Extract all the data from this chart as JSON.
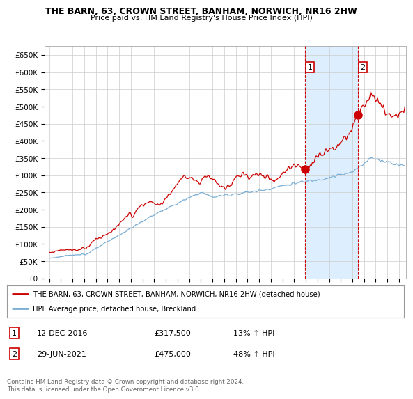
{
  "title": "THE BARN, 63, CROWN STREET, BANHAM, NORWICH, NR16 2HW",
  "subtitle": "Price paid vs. HM Land Registry's House Price Index (HPI)",
  "ylim": [
    0,
    675000
  ],
  "yticks": [
    0,
    50000,
    100000,
    150000,
    200000,
    250000,
    300000,
    350000,
    400000,
    450000,
    500000,
    550000,
    600000,
    650000
  ],
  "ytick_labels": [
    "£0",
    "£50K",
    "£100K",
    "£150K",
    "£200K",
    "£250K",
    "£300K",
    "£350K",
    "£400K",
    "£450K",
    "£500K",
    "£550K",
    "£600K",
    "£650K"
  ],
  "sale1_date": 2016.95,
  "sale1_price": 317500,
  "sale1_label": "1",
  "sale2_date": 2021.49,
  "sale2_price": 475000,
  "sale2_label": "2",
  "legend_line1": "THE BARN, 63, CROWN STREET, BANHAM, NORWICH, NR16 2HW (detached house)",
  "legend_line2": "HPI: Average price, detached house, Breckland",
  "table_row1": [
    "1",
    "12-DEC-2016",
    "£317,500",
    "13% ↑ HPI"
  ],
  "table_row2": [
    "2",
    "29-JUN-2021",
    "£475,000",
    "48% ↑ HPI"
  ],
  "footer": "Contains HM Land Registry data © Crown copyright and database right 2024.\nThis data is licensed under the Open Government Licence v3.0.",
  "line_color_red": "#cc0000",
  "line_color_blue": "#7aaed4",
  "shade_color": "#ddeeff",
  "background_color": "#ffffff",
  "grid_color": "#cccccc",
  "vline_color": "#cc0000",
  "xlim_left": 1994.6,
  "xlim_right": 2025.6
}
